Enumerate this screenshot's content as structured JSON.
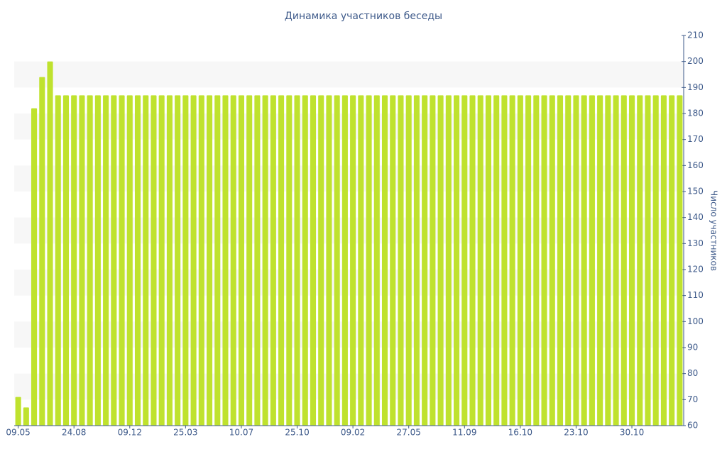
{
  "chart_data": {
    "type": "bar",
    "title": "Динамика участников беседы",
    "y_axis_label": "Число участников",
    "categories": [
      "09.05",
      null,
      null,
      null,
      null,
      null,
      null,
      "24.08",
      null,
      null,
      null,
      null,
      null,
      null,
      "09.12",
      null,
      null,
      null,
      null,
      null,
      null,
      "25.03",
      null,
      null,
      null,
      null,
      null,
      null,
      "10.07",
      null,
      null,
      null,
      null,
      null,
      null,
      "25.10",
      null,
      null,
      null,
      null,
      null,
      null,
      "09.02",
      null,
      null,
      null,
      null,
      null,
      null,
      "27.05",
      null,
      null,
      null,
      null,
      null,
      null,
      "11.09",
      null,
      null,
      null,
      null,
      null,
      null,
      "16.10",
      null,
      null,
      null,
      null,
      null,
      null,
      "23.10",
      null,
      null,
      null,
      null,
      null,
      null,
      "30.10",
      null,
      null,
      null,
      null,
      null,
      null
    ],
    "values": [
      71,
      67,
      182,
      194,
      200,
      187,
      187,
      187,
      187,
      187,
      187,
      187,
      187,
      187,
      187,
      187,
      187,
      187,
      187,
      187,
      187,
      187,
      187,
      187,
      187,
      187,
      187,
      187,
      187,
      187,
      187,
      187,
      187,
      187,
      187,
      187,
      187,
      187,
      187,
      187,
      187,
      187,
      187,
      187,
      187,
      187,
      187,
      187,
      187,
      187,
      187,
      187,
      187,
      187,
      187,
      187,
      187,
      187,
      187,
      187,
      187,
      187,
      187,
      187,
      187,
      187,
      187,
      187,
      187,
      187,
      187,
      187,
      187,
      187,
      187,
      187,
      187,
      187,
      187,
      187,
      187,
      187,
      187,
      187
    ],
    "color": "#bfe22e",
    "ylim": [
      60,
      210
    ],
    "yticks": [
      60,
      70,
      80,
      90,
      100,
      110,
      120,
      130,
      140,
      150,
      160,
      170,
      180,
      190,
      200,
      210
    ],
    "y_axis_side": "right",
    "banded_grid": true
  }
}
